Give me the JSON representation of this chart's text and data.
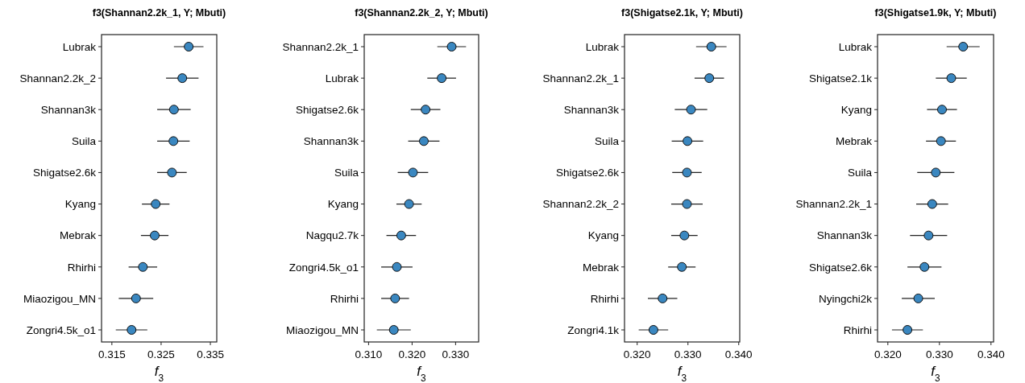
{
  "chart_data": [
    {
      "type": "scatter",
      "orientation": "horizontal",
      "title": "f3(Shannan2.2k_1, Y; Mbuti)",
      "xlabel": "f$_{3}$",
      "marker": "circle",
      "grid": false,
      "categories": [
        "Lubrak",
        "Shannan2.2k_2",
        "Shannan3k",
        "Suila",
        "Shigatse2.6k",
        "Kyang",
        "Mebrak",
        "Rhirhi",
        "Miaozigou_MN",
        "Zongri4.5k_o1"
      ],
      "series": [
        {
          "color": "#3a87c0",
          "values": [
            0.3306,
            0.3293,
            0.3276,
            0.3275,
            0.3272,
            0.3239,
            0.3237,
            0.3213,
            0.3199,
            0.319
          ],
          "errors": [
            0.003,
            0.0033,
            0.0034,
            0.0033,
            0.003,
            0.0028,
            0.0028,
            0.0029,
            0.0035,
            0.0032
          ]
        }
      ],
      "xlim": [
        0.3129,
        0.3363
      ],
      "xticks": [
        0.315,
        0.325,
        0.335
      ]
    },
    {
      "type": "scatter",
      "orientation": "horizontal",
      "title": "f3(Shannan2.2k_2, Y; Mbuti)",
      "xlabel": "f$_{3}$",
      "marker": "circle",
      "grid": false,
      "categories": [
        "Shannan2.2k_1",
        "Lubrak",
        "Shigatse2.6k",
        "Shannan3k",
        "Suila",
        "Kyang",
        "Nagqu2.7k",
        "Zongri4.5k_o1",
        "Rhirhi",
        "Miaozigou_MN"
      ],
      "series": [
        {
          "color": "#3a87c0",
          "values": [
            0.3291,
            0.3268,
            0.3231,
            0.3227,
            0.3202,
            0.3193,
            0.3175,
            0.3165,
            0.3161,
            0.3158
          ],
          "errors": [
            0.0033,
            0.0033,
            0.0034,
            0.0036,
            0.0035,
            0.0029,
            0.0034,
            0.0036,
            0.0032,
            0.0039
          ]
        }
      ],
      "xlim": [
        0.309,
        0.3353
      ],
      "xticks": [
        {
          "value": 0.31,
          "label": "0.310"
        },
        {
          "value": 0.32,
          "label": "0.320"
        },
        {
          "value": 0.33,
          "label": "0.330"
        }
      ]
    },
    {
      "type": "scatter",
      "orientation": "horizontal",
      "title": "f3(Shigatse2.1k, Y; Mbuti)",
      "xlabel": "f$_{3}$",
      "marker": "circle",
      "grid": false,
      "categories": [
        "Lubrak",
        "Shannan2.2k_1",
        "Shannan3k",
        "Suila",
        "Shigatse2.6k",
        "Shannan2.2k_2",
        "Kyang",
        "Mebrak",
        "Rhirhi",
        "Zongri4.1k"
      ],
      "series": [
        {
          "color": "#3a87c0",
          "values": [
            0.3346,
            0.3342,
            0.3306,
            0.3299,
            0.3298,
            0.3298,
            0.3293,
            0.3288,
            0.325,
            0.3232
          ],
          "errors": [
            0.003,
            0.0029,
            0.0032,
            0.0031,
            0.0029,
            0.0031,
            0.0026,
            0.0027,
            0.0029,
            0.0029
          ]
        }
      ],
      "xlim": [
        0.3175,
        0.3402
      ],
      "xticks": [
        {
          "value": 0.32,
          "label": "0.320"
        },
        {
          "value": 0.33,
          "label": "0.330"
        },
        {
          "value": 0.34,
          "label": "0.340"
        }
      ]
    },
    {
      "type": "scatter",
      "orientation": "horizontal",
      "title": "f3(Shigatse1.9k, Y; Mbuti)",
      "xlabel": "f$_{3}$",
      "marker": "circle",
      "grid": false,
      "categories": [
        "Lubrak",
        "Shigatse2.1k",
        "Kyang",
        "Mebrak",
        "Suila",
        "Shannan2.2k_1",
        "Shannan3k",
        "Shigatse2.6k",
        "Nyingchi2k",
        "Rhirhi"
      ],
      "series": [
        {
          "color": "#3a87c0",
          "values": [
            0.3346,
            0.3323,
            0.3305,
            0.3303,
            0.3293,
            0.3286,
            0.3279,
            0.3271,
            0.3259,
            0.3238
          ],
          "errors": [
            0.0032,
            0.003,
            0.0029,
            0.0029,
            0.0036,
            0.0031,
            0.0036,
            0.0033,
            0.0032,
            0.003
          ]
        }
      ],
      "xlim": [
        0.318,
        0.3405
      ],
      "xticks": [
        {
          "value": 0.32,
          "label": "0.320"
        },
        {
          "value": 0.33,
          "label": "0.330"
        },
        {
          "value": 0.34,
          "label": "0.340"
        }
      ]
    }
  ]
}
